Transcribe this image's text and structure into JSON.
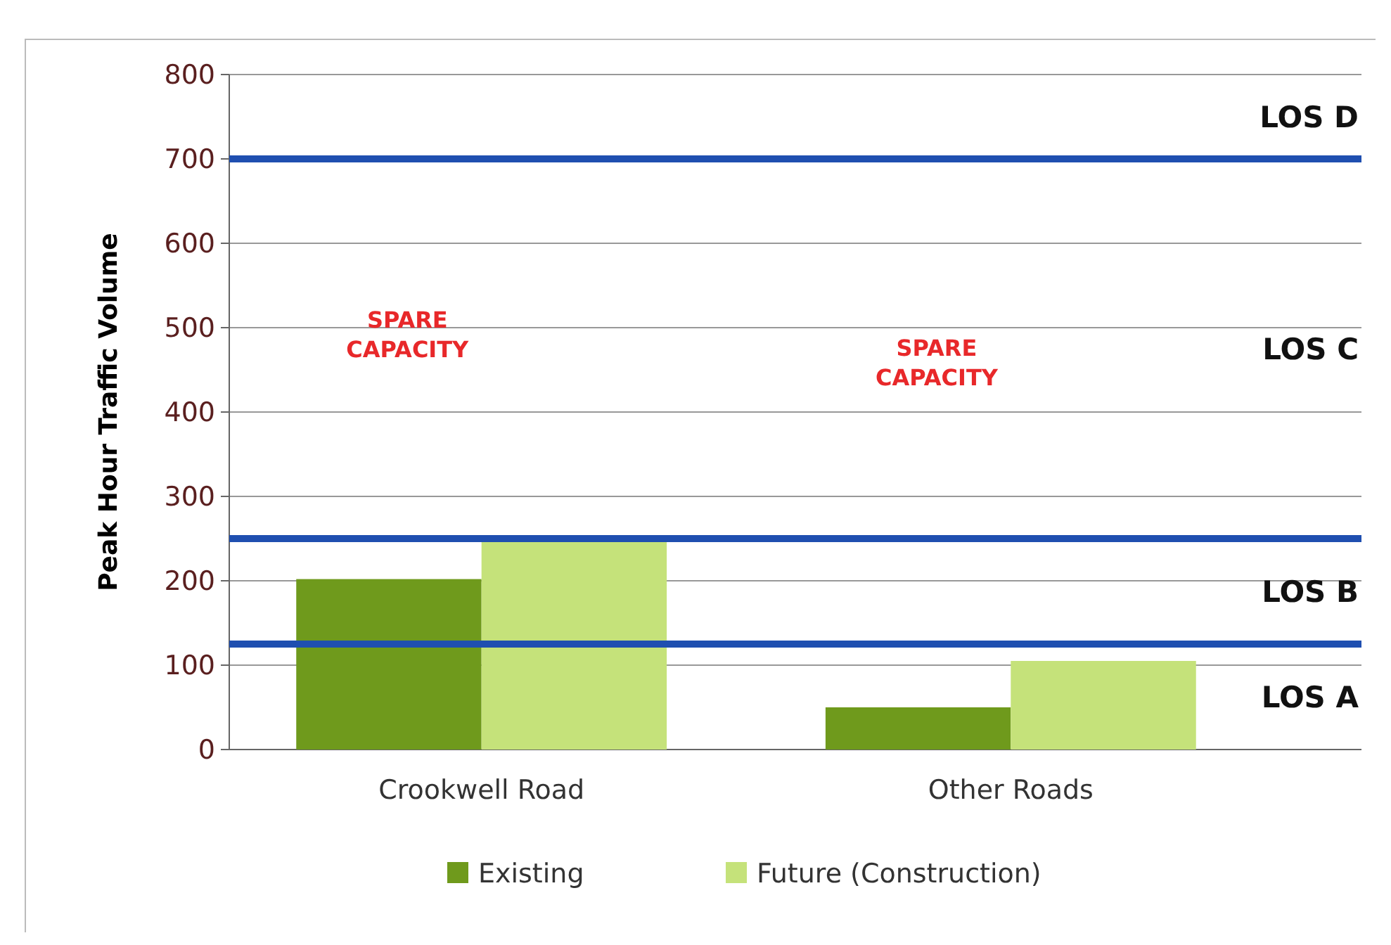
{
  "chart_data": {
    "type": "bar",
    "ylabel": "Peak Hour Traffic Volume",
    "categories": [
      "Crookwell Road",
      "Other Roads"
    ],
    "series": [
      {
        "name": "Existing",
        "color": "#6f9a1c",
        "values": [
          202,
          50
        ]
      },
      {
        "name": "Future (Construction)",
        "color": "#c5e27a",
        "values": [
          250,
          105
        ]
      }
    ],
    "ylim": [
      0,
      800
    ],
    "yticks": [
      0,
      100,
      200,
      300,
      400,
      500,
      600,
      700,
      800
    ],
    "grid": "y",
    "legend": "bottom",
    "ref_lines": [
      {
        "axis": "y",
        "value": 700,
        "color": "#1f4fb0"
      },
      {
        "axis": "y",
        "value": 250,
        "color": "#1f4fb0"
      },
      {
        "axis": "y",
        "value": 125,
        "color": "#1f4fb0"
      }
    ],
    "annotations": [
      "LOS D",
      "LOS C",
      "LOS B",
      "LOS A",
      "SPARE CAPACITY",
      "SPARE CAPACITY"
    ]
  }
}
